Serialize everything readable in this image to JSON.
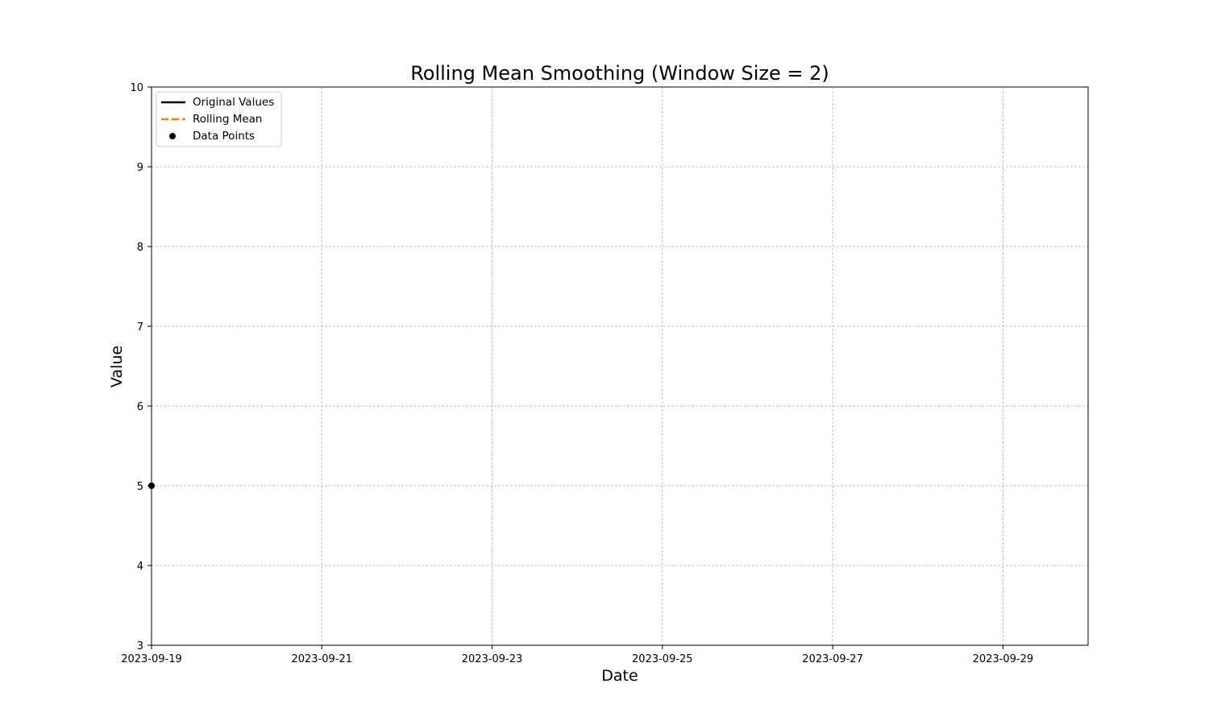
{
  "chart_data": {
    "type": "line",
    "title": "Rolling Mean Smoothing (Window Size = 2)",
    "xlabel": "Date",
    "ylabel": "Value",
    "xlim": [
      "2023-09-19",
      "2023-09-30"
    ],
    "ylim": [
      3,
      10
    ],
    "x_ticks": [
      "2023-09-19",
      "2023-09-21",
      "2023-09-23",
      "2023-09-25",
      "2023-09-27",
      "2023-09-29"
    ],
    "y_ticks": [
      3,
      4,
      5,
      6,
      7,
      8,
      9,
      10
    ],
    "grid": true,
    "legend_position": "top-left",
    "series": [
      {
        "name": "Original Values",
        "style": "solid",
        "color": "#000000",
        "x": [
          "2023-09-19"
        ],
        "y": [
          5
        ]
      },
      {
        "name": "Rolling Mean",
        "style": "dashed",
        "color": "#ff7f0e",
        "x": [],
        "y": []
      },
      {
        "name": "Data Points",
        "style": "markers",
        "color": "#000000",
        "x": [
          "2023-09-19"
        ],
        "y": [
          5
        ]
      }
    ]
  }
}
